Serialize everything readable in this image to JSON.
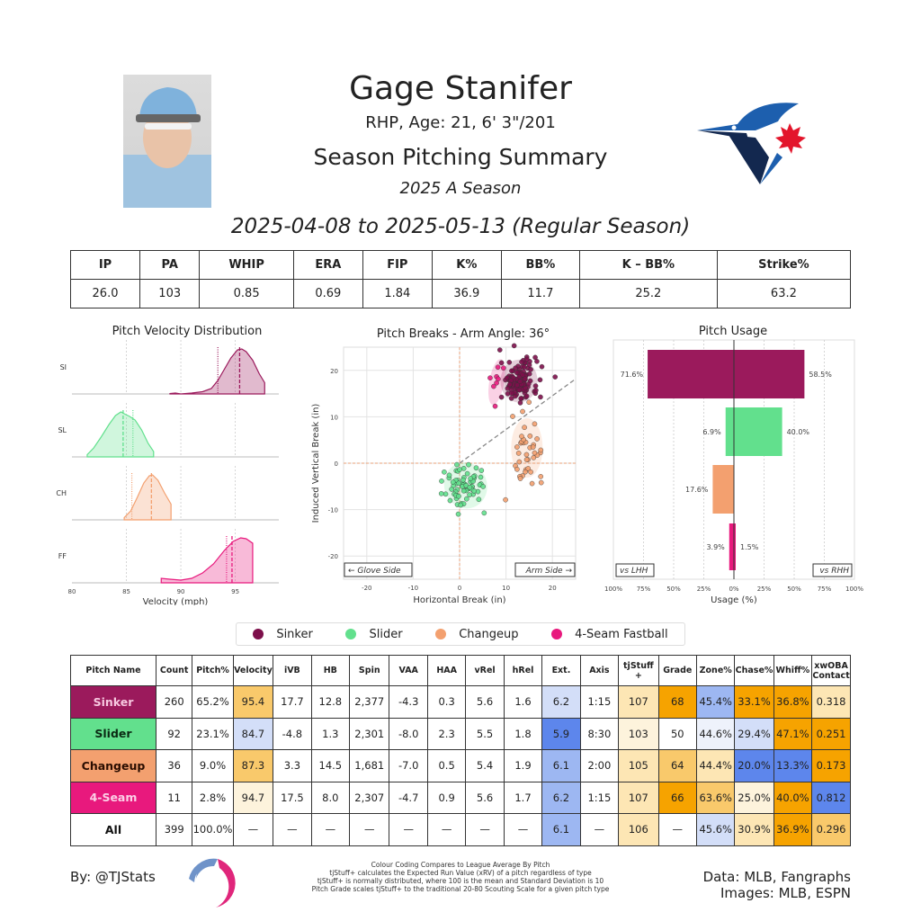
{
  "header": {
    "player_name": "Gage Stanifer",
    "bio": "RHP, Age: 21, 6' 3\"/201",
    "title": "Season Pitching Summary",
    "season": "2025 A Season",
    "date_range": "2025-04-08 to 2025-05-13 (Regular Season)"
  },
  "summary": {
    "headers": [
      "IP",
      "PA",
      "WHIP",
      "ERA",
      "FIP",
      "K%",
      "BB%",
      "K – BB%",
      "Strike%"
    ],
    "values": [
      "26.0",
      "103",
      "0.85",
      "0.69",
      "1.84",
      "36.9",
      "11.7",
      "25.2",
      "63.2"
    ]
  },
  "colors": {
    "sinker": "#9b1a5c",
    "slider": "#62e08d",
    "changeup": "#f3a06f",
    "fourseam": "#e8197d",
    "good_strong": "#f6a300",
    "good_mid": "#f9c96b",
    "good_light": "#fde6b4",
    "good_faint": "#fdf3dc",
    "bad_strong": "#5d86ec",
    "bad_mid": "#9db7f2",
    "bad_light": "#d3def8",
    "bad_faint": "#eef2fb"
  },
  "chart_data": [
    {
      "type": "area",
      "title": "Pitch Velocity Distribution",
      "xlabel": "Velocity (mph)",
      "xlim": [
        80,
        99
      ],
      "xticks": [
        "80",
        "85",
        "90",
        "95"
      ],
      "series": [
        {
          "name": "SI",
          "color": "#9b1a5c",
          "mean": 95.4,
          "league_mean": 93.4,
          "x": [
            89.0,
            89.5,
            90.0,
            91.0,
            92.0,
            92.8,
            93.4,
            94.0,
            94.6,
            95.2,
            95.6,
            96.0,
            96.6,
            97.2,
            97.7
          ],
          "y": [
            0.01,
            0.02,
            0.0,
            0.02,
            0.05,
            0.12,
            0.3,
            0.55,
            0.8,
            0.98,
            1.0,
            0.94,
            0.75,
            0.45,
            0.25
          ]
        },
        {
          "name": "SL",
          "color": "#62e08d",
          "mean": 84.7,
          "league_mean": 85.6,
          "x": [
            81.4,
            82.0,
            82.7,
            83.4,
            84.0,
            84.5,
            84.8,
            85.3,
            85.8,
            86.4,
            87.0,
            87.5
          ],
          "y": [
            0.05,
            0.2,
            0.45,
            0.72,
            0.92,
            1.0,
            0.96,
            0.9,
            0.82,
            0.6,
            0.3,
            0.12
          ]
        },
        {
          "name": "CH",
          "color": "#f3a06f",
          "mean": 87.3,
          "league_mean": 85.5,
          "x": [
            84.8,
            85.4,
            86.0,
            86.6,
            87.1,
            87.4,
            87.9,
            88.5,
            89.1
          ],
          "y": [
            0.05,
            0.2,
            0.5,
            0.82,
            0.98,
            1.0,
            0.88,
            0.6,
            0.35
          ]
        },
        {
          "name": "FF",
          "color": "#e8197d",
          "mean": 94.7,
          "league_mean": 94.2,
          "x": [
            88.2,
            89.0,
            90.0,
            91.0,
            92.0,
            93.0,
            94.0,
            94.8,
            95.5,
            96.0,
            96.6
          ],
          "y": [
            0.1,
            0.08,
            0.06,
            0.1,
            0.22,
            0.42,
            0.72,
            0.92,
            1.0,
            0.98,
            0.88
          ]
        }
      ]
    },
    {
      "type": "scatter",
      "title": "Pitch Breaks - Arm Angle: 36°",
      "xlabel": "Horizontal Break (in)",
      "ylabel": "Induced Vertical Break (in)",
      "xlim": [
        -25,
        25
      ],
      "ylim": [
        -25,
        25
      ],
      "xticks": [
        "-20",
        "-10",
        "0",
        "10",
        "20"
      ],
      "yticks": [
        "20",
        "10",
        "0",
        "-10",
        "-20"
      ],
      "arm_angle_deg": 36,
      "glove_side_label": "← Glove Side",
      "arm_side_label": "Arm Side →",
      "series": [
        {
          "name": "Sinker",
          "color": "#7d0f4b",
          "center": [
            12.8,
            17.7
          ],
          "sd": [
            2.0,
            2.3
          ],
          "n": 130
        },
        {
          "name": "Slider",
          "color": "#62e08d",
          "center": [
            1.3,
            -4.8
          ],
          "sd": [
            2.3,
            2.5
          ],
          "n": 70
        },
        {
          "name": "Changeup",
          "color": "#f3a06f",
          "center": [
            14.5,
            3.3
          ],
          "sd": [
            1.7,
            3.2
          ],
          "n": 40
        },
        {
          "name": "4-Seam Fastball",
          "color": "#e8197d",
          "center": [
            8.0,
            17.5
          ],
          "sd": [
            0.8,
            2.5
          ],
          "n": 8
        }
      ]
    },
    {
      "type": "bar",
      "title": "Pitch Usage",
      "xlabel": "Usage (%)",
      "xlim": [
        -100,
        100
      ],
      "xticks": [
        "100%",
        "75%",
        "50%",
        "25%",
        "0%",
        "25%",
        "50%",
        "75%",
        "100%"
      ],
      "left_label": "vs LHH",
      "right_label": "vs RHH",
      "categories": [
        "Sinker",
        "Slider",
        "Changeup",
        "4-Seam Fastball"
      ],
      "series": [
        {
          "name": "vs LHH",
          "values": [
            71.6,
            6.9,
            17.6,
            3.9
          ],
          "labels": [
            "71.6%",
            "6.9%",
            "17.6%",
            "3.9%"
          ]
        },
        {
          "name": "vs RHH",
          "values": [
            58.5,
            40.0,
            0.0,
            1.5
          ],
          "labels": [
            "58.5%",
            "40.0%",
            "",
            "1.5%"
          ]
        }
      ]
    }
  ],
  "legend": [
    "Sinker",
    "Slider",
    "Changeup",
    "4-Seam Fastball"
  ],
  "pitch_table": {
    "headers": [
      "Pitch Name",
      "Count",
      "Pitch%",
      "Velocity",
      "iVB",
      "HB",
      "Spin",
      "VAA",
      "HAA",
      "vRel",
      "hRel",
      "Ext.",
      "Axis",
      "tjStuff +",
      "Grade",
      "Zone%",
      "Chase%",
      "Whiff%",
      "xwOBA Contact"
    ],
    "rows": [
      {
        "name": "Sinker",
        "bg": "#9b1a5c",
        "fg": "#f7c8e0",
        "cells": [
          "260",
          "65.2%",
          "95.4",
          "17.7",
          "12.8",
          "2,377",
          "-4.3",
          "0.3",
          "5.6",
          "1.6",
          "6.2",
          "1:15",
          "107",
          "68",
          "45.4%",
          "33.1%",
          "36.8%",
          "0.318"
        ],
        "shade": [
          "",
          "",
          "good_mid",
          "",
          "",
          "",
          "",
          "",
          "",
          "",
          "bad_light",
          "",
          "good_light",
          "good_strong",
          "bad_mid",
          "good_strong",
          "good_strong",
          "good_light"
        ]
      },
      {
        "name": "Slider",
        "bg": "#62e08d",
        "fg": "#0b2a14",
        "cells": [
          "92",
          "23.1%",
          "84.7",
          "-4.8",
          "1.3",
          "2,301",
          "-8.0",
          "2.3",
          "5.5",
          "1.8",
          "5.9",
          "8:30",
          "103",
          "50",
          "44.6%",
          "29.4%",
          "47.1%",
          "0.251"
        ],
        "shade": [
          "",
          "",
          "bad_light",
          "",
          "",
          "",
          "",
          "",
          "",
          "",
          "bad_strong",
          "",
          "good_faint",
          "",
          "bad_faint",
          "bad_light",
          "good_strong",
          "good_strong"
        ]
      },
      {
        "name": "Changeup",
        "bg": "#f3a06f",
        "fg": "#2a0d00",
        "cells": [
          "36",
          "9.0%",
          "87.3",
          "3.3",
          "14.5",
          "1,681",
          "-7.0",
          "0.5",
          "5.4",
          "1.9",
          "6.1",
          "2:00",
          "105",
          "64",
          "44.4%",
          "20.0%",
          "13.3%",
          "0.173"
        ],
        "shade": [
          "",
          "",
          "good_mid",
          "",
          "",
          "",
          "",
          "",
          "",
          "",
          "bad_mid",
          "",
          "good_light",
          "good_mid",
          "good_light",
          "bad_strong",
          "bad_strong",
          "good_strong"
        ]
      },
      {
        "name": "4-Seam",
        "bg": "#e8197d",
        "fg": "#fbd0e6",
        "cells": [
          "11",
          "2.8%",
          "94.7",
          "17.5",
          "8.0",
          "2,307",
          "-4.7",
          "0.9",
          "5.6",
          "1.7",
          "6.2",
          "1:15",
          "107",
          "66",
          "63.6%",
          "25.0%",
          "40.0%",
          "0.812"
        ],
        "shade": [
          "",
          "",
          "good_faint",
          "",
          "",
          "",
          "",
          "",
          "",
          "",
          "bad_mid",
          "",
          "good_light",
          "good_strong",
          "good_mid",
          "good_faint",
          "good_strong",
          "bad_strong"
        ]
      },
      {
        "name": "All",
        "bg": "#ffffff",
        "fg": "#111111",
        "cells": [
          "399",
          "100.0%",
          "—",
          "—",
          "—",
          "—",
          "—",
          "—",
          "—",
          "—",
          "6.1",
          "—",
          "106",
          "—",
          "45.6%",
          "30.9%",
          "36.9%",
          "0.296"
        ],
        "shade": [
          "",
          "",
          "",
          "",
          "",
          "",
          "",
          "",
          "",
          "",
          "bad_mid",
          "",
          "good_light",
          "",
          "bad_light",
          "good_light",
          "good_strong",
          "good_mid"
        ]
      }
    ]
  },
  "footer": {
    "by": "By: @TJStats",
    "notes": [
      "Colour Coding Compares to League Average By Pitch",
      "tjStuff+ calculates the Expected Run Value (xRV) of a pitch regardless of type",
      "tjStuff+ is normally distributed, where 100 is the mean and Standard Deviation is 10",
      "Pitch Grade scales tjStuff+ to the traditional 20-80 Scouting Scale for a given pitch type"
    ],
    "data_credit": "Data: MLB, Fangraphs",
    "images_credit": "Images: MLB, ESPN"
  }
}
